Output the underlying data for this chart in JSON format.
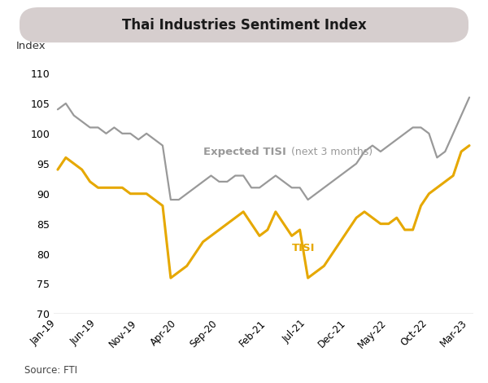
{
  "title": "Thai Industries Sentiment Index",
  "ylabel": "Index",
  "source": "Source: FTI",
  "ylim": [
    70,
    112
  ],
  "yticks": [
    70,
    75,
    80,
    85,
    90,
    95,
    100,
    105,
    110
  ],
  "xtick_labels": [
    "Jan-19",
    "Jun-19",
    "Nov-19",
    "Apr-20",
    "Sep-20",
    "Feb-21",
    "Jul-21",
    "Dec-21",
    "May-22",
    "Oct-22",
    "Mar-23"
  ],
  "background_color": "#ffffff",
  "title_box_color": "#d6cece",
  "tisi_color": "#E6A800",
  "expected_tisi_color": "#999999",
  "tisi_label": "TISI",
  "expected_tisi_label": "Expected TISI",
  "expected_tisi_sublabel": " (next 3 months)",
  "tisi_x": [
    0,
    1,
    2,
    3,
    4,
    5,
    6,
    7,
    8,
    9,
    10,
    11,
    12,
    13,
    14,
    15,
    16,
    17,
    18,
    19,
    20,
    21,
    22,
    23,
    24,
    25,
    26,
    27,
    28,
    29,
    30,
    31,
    32,
    33,
    34,
    35,
    36,
    37,
    38,
    39,
    40,
    41,
    42,
    43,
    44,
    45,
    46,
    47,
    48,
    49,
    50,
    51
  ],
  "tisi_y": [
    94,
    96,
    95,
    94,
    92,
    91,
    91,
    91,
    91,
    90,
    90,
    90,
    89,
    88,
    76,
    77,
    78,
    80,
    82,
    83,
    84,
    85,
    86,
    87,
    85,
    83,
    84,
    87,
    85,
    83,
    84,
    76,
    77,
    78,
    80,
    82,
    84,
    86,
    87,
    86,
    85,
    85,
    86,
    84,
    84,
    88,
    90,
    91,
    92,
    93,
    97,
    98
  ],
  "expected_x": [
    0,
    1,
    2,
    3,
    4,
    5,
    6,
    7,
    8,
    9,
    10,
    11,
    12,
    13,
    14,
    15,
    16,
    17,
    18,
    19,
    20,
    21,
    22,
    23,
    24,
    25,
    26,
    27,
    28,
    29,
    30,
    31,
    32,
    33,
    34,
    35,
    36,
    37,
    38,
    39,
    40,
    41,
    42,
    43,
    44,
    45,
    46,
    47,
    48,
    49,
    50,
    51
  ],
  "expected_y": [
    104,
    105,
    103,
    102,
    101,
    101,
    100,
    101,
    100,
    100,
    99,
    100,
    99,
    98,
    89,
    89,
    90,
    91,
    92,
    93,
    92,
    92,
    93,
    93,
    91,
    91,
    92,
    93,
    92,
    91,
    91,
    89,
    90,
    91,
    92,
    93,
    94,
    95,
    97,
    98,
    97,
    98,
    99,
    100,
    101,
    101,
    100,
    96,
    97,
    100,
    103,
    106
  ]
}
